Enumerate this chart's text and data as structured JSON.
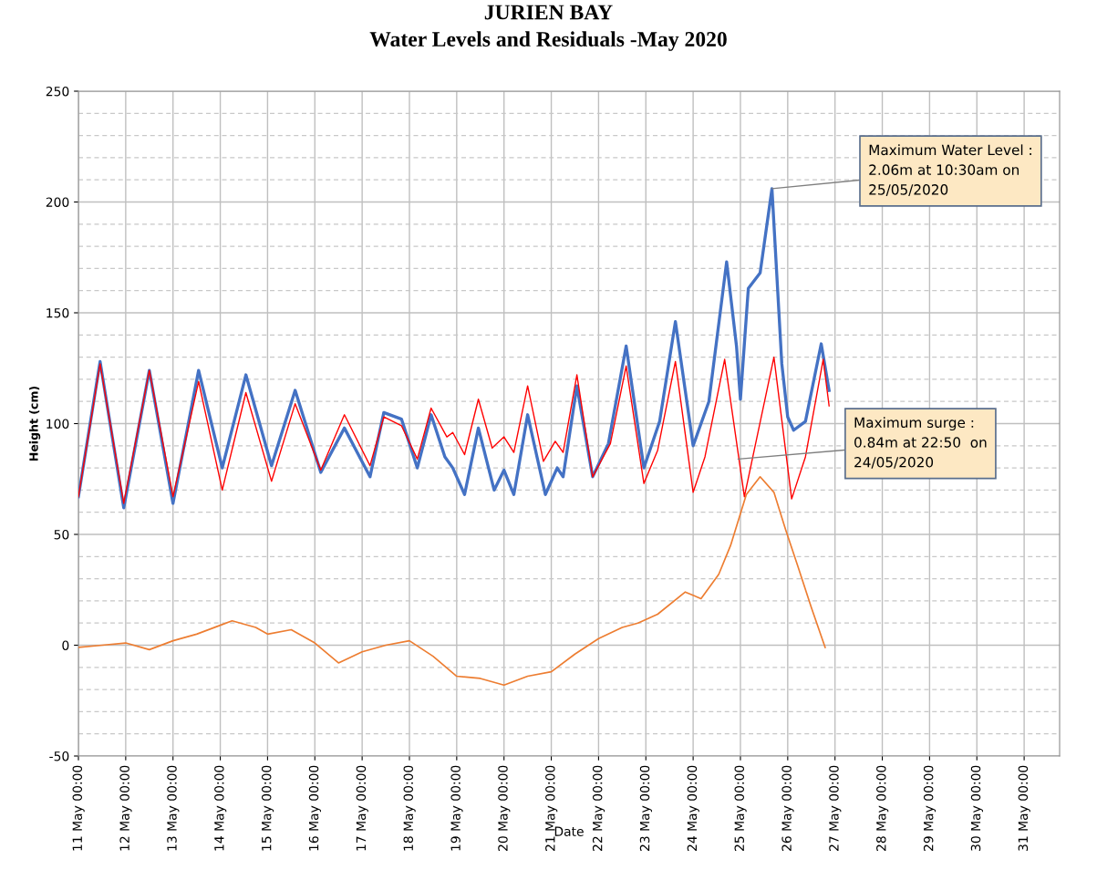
{
  "chart_data": {
    "type": "line",
    "title": "JURIEN BAY\nWater Levels and Residuals -May 2020",
    "xlabel": "Date",
    "ylabel": "Height (cm)",
    "xlim": [
      "2020-05-11T00:00",
      "2020-05-31T18:00"
    ],
    "xticks": [
      {
        "value": "2020-05-11",
        "label": "11 May 00:00"
      },
      {
        "value": "2020-05-12",
        "label": "12 May 00:00"
      },
      {
        "value": "2020-05-13",
        "label": "13 May 00:00"
      },
      {
        "value": "2020-05-14",
        "label": "14 May 00:00"
      },
      {
        "value": "2020-05-15",
        "label": "15 May 00:00"
      },
      {
        "value": "2020-05-16",
        "label": "16 May 00:00"
      },
      {
        "value": "2020-05-17",
        "label": "17 May 00:00"
      },
      {
        "value": "2020-05-18",
        "label": "18 May 00:00"
      },
      {
        "value": "2020-05-19",
        "label": "19 May 00:00"
      },
      {
        "value": "2020-05-20",
        "label": "20 May 00:00"
      },
      {
        "value": "2020-05-21",
        "label": "21 May 00:00"
      },
      {
        "value": "2020-05-22",
        "label": "22 May 00:00"
      },
      {
        "value": "2020-05-23",
        "label": "23 May 00:00"
      },
      {
        "value": "2020-05-24",
        "label": "24 May 00:00"
      },
      {
        "value": "2020-05-25",
        "label": "25 May 00:00"
      },
      {
        "value": "2020-05-26",
        "label": "26 May 00:00"
      },
      {
        "value": "2020-05-27",
        "label": "27 May 00:00"
      },
      {
        "value": "2020-05-28",
        "label": "28 May 00:00"
      },
      {
        "value": "2020-05-29",
        "label": "29 May 00:00"
      },
      {
        "value": "2020-05-30",
        "label": "30 May 00:00"
      },
      {
        "value": "2020-05-31",
        "label": "31 May 00:00"
      }
    ],
    "ylim": [
      -50,
      250
    ],
    "yticks": [
      -50,
      {
        "value": -40,
        "label": null
      },
      {
        "value": -30,
        "label": null
      },
      {
        "value": -20,
        "label": null
      },
      {
        "value": -10,
        "label": null
      },
      0,
      {
        "value": 10,
        "label": null
      },
      {
        "value": 20,
        "label": null
      },
      {
        "value": 30,
        "label": null
      },
      {
        "value": 40,
        "label": null
      },
      50,
      {
        "value": 60,
        "label": null
      },
      {
        "value": 70,
        "label": null
      },
      {
        "value": 80,
        "label": null
      },
      {
        "value": 90,
        "label": null
      },
      100,
      {
        "value": 110,
        "label": null
      },
      {
        "value": 120,
        "label": null
      },
      {
        "value": 130,
        "label": null
      },
      {
        "value": 140,
        "label": null
      },
      150,
      {
        "value": 160,
        "label": null
      },
      {
        "value": 170,
        "label": null
      },
      {
        "value": 180,
        "label": null
      },
      {
        "value": 190,
        "label": null
      },
      200,
      {
        "value": 210,
        "label": null
      },
      {
        "value": 220,
        "label": null
      },
      {
        "value": 230,
        "label": null
      },
      {
        "value": 240,
        "label": null
      },
      250
    ],
    "grid": true,
    "legend": false,
    "marker": "none",
    "line_style": "solid",
    "series": [
      {
        "color": "#4472c4",
        "x": [
          "2020-05-11T00:00",
          "2020-05-11T11:00",
          "2020-05-11T23:00",
          "2020-05-12T12:00",
          "2020-05-13T00:00",
          "2020-05-13T13:00",
          "2020-05-14T01:00",
          "2020-05-14T13:00",
          "2020-05-15T02:00",
          "2020-05-15T14:00",
          "2020-05-16T03:00",
          "2020-05-16T15:00",
          "2020-05-17T04:00",
          "2020-05-17T11:00",
          "2020-05-17T20:00",
          "2020-05-18T04:00",
          "2020-05-18T11:00",
          "2020-05-18T18:00",
          "2020-05-18T22:00",
          "2020-05-19T04:00",
          "2020-05-19T11:00",
          "2020-05-19T19:00",
          "2020-05-20T00:00",
          "2020-05-20T05:00",
          "2020-05-20T12:00",
          "2020-05-20T21:00",
          "2020-05-21T03:00",
          "2020-05-21T06:00",
          "2020-05-21T13:00",
          "2020-05-21T21:00",
          "2020-05-22T05:00",
          "2020-05-22T14:00",
          "2020-05-22T23:00",
          "2020-05-23T07:00",
          "2020-05-23T15:00",
          "2020-05-24T00:00",
          "2020-05-24T08:00",
          "2020-05-24T17:00",
          "2020-05-24T22:00",
          "2020-05-25T00:00",
          "2020-05-25T04:00",
          "2020-05-25T10:00",
          "2020-05-25T16:00",
          "2020-05-25T21:00",
          "2020-05-26T00:00",
          "2020-05-26T03:00",
          "2020-05-26T09:00",
          "2020-05-26T17:00",
          "2020-05-26T21:00"
        ],
        "values": [
          67,
          128,
          62,
          124,
          64,
          124,
          80,
          122,
          81,
          115,
          78,
          98,
          76,
          105,
          102,
          80,
          104,
          85,
          80,
          68,
          98,
          70,
          79,
          68,
          104,
          68,
          80,
          76,
          117,
          76,
          91,
          135,
          80,
          101,
          146,
          90,
          110,
          173,
          135,
          111,
          161,
          168,
          206,
          127,
          103,
          97,
          101,
          136,
          115
        ]
      },
      {
        "color": "#ff0000",
        "x": [
          "2020-05-11T00:00",
          "2020-05-11T11:00",
          "2020-05-11T23:00",
          "2020-05-12T12:00",
          "2020-05-13T00:00",
          "2020-05-13T13:00",
          "2020-05-14T01:00",
          "2020-05-14T13:00",
          "2020-05-15T02:00",
          "2020-05-15T14:00",
          "2020-05-16T03:00",
          "2020-05-16T15:00",
          "2020-05-17T04:00",
          "2020-05-17T11:00",
          "2020-05-17T20:00",
          "2020-05-18T04:00",
          "2020-05-18T11:00",
          "2020-05-18T19:00",
          "2020-05-18T22:00",
          "2020-05-19T04:00",
          "2020-05-19T11:00",
          "2020-05-19T18:00",
          "2020-05-20T00:00",
          "2020-05-20T05:00",
          "2020-05-20T12:00",
          "2020-05-20T20:00",
          "2020-05-21T02:00",
          "2020-05-21T06:00",
          "2020-05-21T13:00",
          "2020-05-21T21:00",
          "2020-05-22T06:00",
          "2020-05-22T14:00",
          "2020-05-22T23:00",
          "2020-05-23T06:00",
          "2020-05-23T15:00",
          "2020-05-24T00:00",
          "2020-05-24T06:00",
          "2020-05-24T16:00",
          "2020-05-25T02:00",
          "2020-05-25T07:00",
          "2020-05-25T17:00",
          "2020-05-26T02:00",
          "2020-05-26T09:00",
          "2020-05-26T18:00",
          "2020-05-26T21:00"
        ],
        "values": [
          67,
          127,
          64,
          124,
          67,
          119,
          70,
          114,
          74,
          109,
          79,
          104,
          81,
          103,
          99,
          84,
          107,
          94,
          96,
          86,
          111,
          89,
          94,
          87,
          117,
          83,
          92,
          87,
          122,
          76,
          91,
          126,
          73,
          88,
          128,
          69,
          85,
          129,
          67,
          88,
          130,
          66,
          85,
          129,
          108
        ]
      },
      {
        "color": "#ed7d31",
        "x": [
          "2020-05-11T00:00",
          "2020-05-11T12:00",
          "2020-05-12T00:00",
          "2020-05-12T12:00",
          "2020-05-13T00:00",
          "2020-05-13T12:00",
          "2020-05-14T00:00",
          "2020-05-14T06:00",
          "2020-05-14T18:00",
          "2020-05-15T00:00",
          "2020-05-15T12:00",
          "2020-05-16T00:00",
          "2020-05-16T12:00",
          "2020-05-17T00:00",
          "2020-05-17T12:00",
          "2020-05-18T00:00",
          "2020-05-18T12:00",
          "2020-05-19T00:00",
          "2020-05-19T12:00",
          "2020-05-20T00:00",
          "2020-05-20T12:00",
          "2020-05-21T00:00",
          "2020-05-21T12:00",
          "2020-05-22T00:00",
          "2020-05-22T12:00",
          "2020-05-22T20:00",
          "2020-05-23T06:00",
          "2020-05-23T20:00",
          "2020-05-24T04:00",
          "2020-05-24T13:00",
          "2020-05-24T19:00",
          "2020-05-25T03:00",
          "2020-05-25T10:00",
          "2020-05-25T17:00",
          "2020-05-25T23:00",
          "2020-05-26T05:00",
          "2020-05-26T12:00",
          "2020-05-26T19:00"
        ],
        "values": [
          -1,
          0,
          1,
          -2,
          2,
          5,
          9,
          11,
          8,
          5,
          7,
          1,
          -8,
          -3,
          0,
          2,
          -5,
          -14,
          -15,
          -18,
          -14,
          -12,
          -4,
          3,
          8,
          10,
          14,
          24,
          21,
          32,
          45,
          68,
          76,
          69,
          52,
          36,
          17,
          -1
        ]
      }
    ],
    "annotations": [
      {
        "text": "Maximum Water Level :\n2.06m at 10:30am on\n25/05/2020",
        "x": "2020-05-25T16:00",
        "y": 206
      },
      {
        "text": "Maximum surge :\n0.84m at 22:50  on\n24/05/2020",
        "x": "2020-05-24T22:50",
        "y": 84
      }
    ]
  }
}
